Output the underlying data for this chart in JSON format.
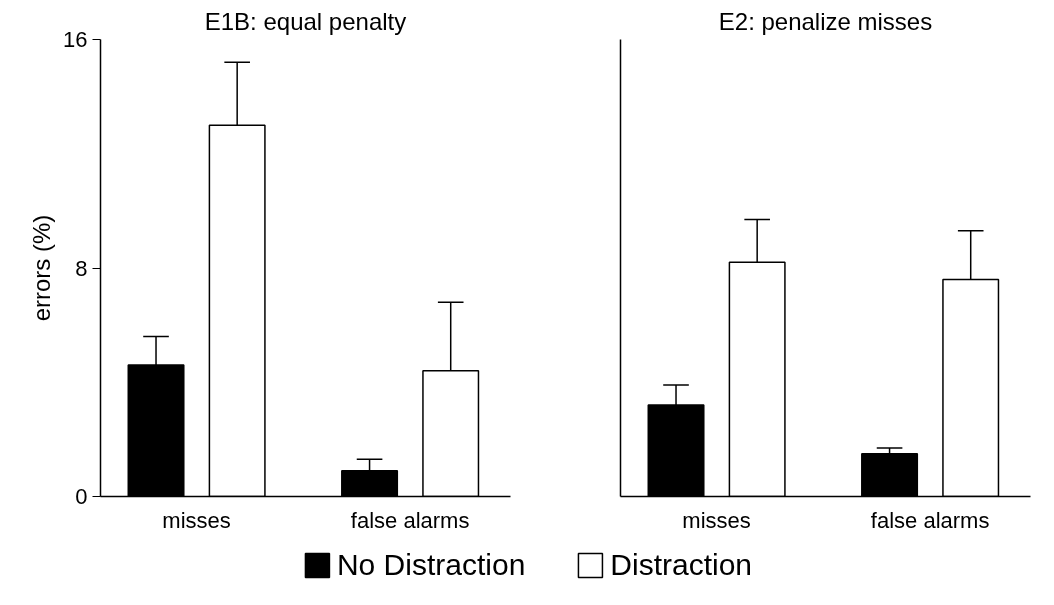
{
  "chart_data": [
    {
      "type": "bar",
      "title": "E1B: equal penalty",
      "ylabel": "errors (%)",
      "categories": [
        "misses",
        "false alarms"
      ],
      "series": [
        {
          "name": "No Distraction",
          "color": "#000000",
          "values": [
            4.6,
            0.9
          ],
          "errors": [
            [
              4.6,
              5.6
            ],
            [
              0.9,
              1.3
            ]
          ]
        },
        {
          "name": "Distraction",
          "color": "#ffffff",
          "values": [
            13.0,
            4.4
          ],
          "errors": [
            [
              13.0,
              15.2
            ],
            [
              4.4,
              6.8
            ]
          ]
        }
      ],
      "ylim": [
        0,
        16
      ],
      "yticks": [
        0,
        8,
        16
      ],
      "grid": false,
      "legend": "bottom"
    },
    {
      "type": "bar",
      "title": "E2: penalize misses",
      "categories": [
        "misses",
        "false alarms"
      ],
      "series": [
        {
          "color": "#000000",
          "values": [
            3.2,
            1.5
          ],
          "errors": [
            [
              3.2,
              3.9
            ],
            [
              1.5,
              1.7
            ]
          ]
        },
        {
          "color": "#ffffff",
          "values": [
            8.2,
            7.6
          ],
          "errors": [
            [
              8.2,
              9.7
            ],
            [
              7.6,
              9.3
            ]
          ]
        }
      ],
      "ylim": [
        0,
        16
      ],
      "yticks": [
        0,
        8,
        16
      ],
      "tick_labels": "x",
      "grid": false
    }
  ]
}
